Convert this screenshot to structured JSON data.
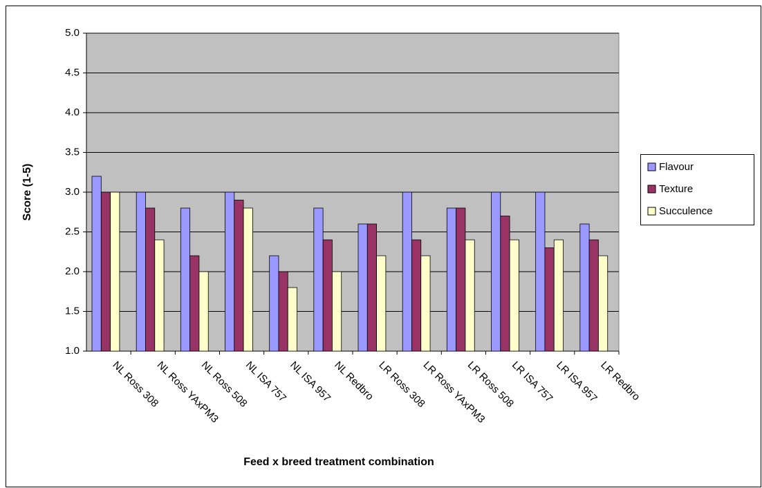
{
  "chart_data": {
    "type": "bar",
    "x_label": "Feed x breed treatment combination",
    "y_label": "Score (1-5)",
    "categories": [
      "NL Ross 308",
      "NL Ross YAxPM3",
      "NL Ross 508",
      "NL ISA 757",
      "NL ISA 957",
      "NL Redbro",
      "LR Ross 308",
      "LR Ross YAxPM3",
      "LR Ross 508",
      "LR ISA 757",
      "LR ISA 957",
      "LR Redbro"
    ],
    "series": [
      {
        "name": "Flavour",
        "color": "#9999ff",
        "values": [
          3.2,
          3.0,
          2.8,
          3.0,
          2.2,
          2.8,
          2.6,
          3.0,
          2.8,
          3.0,
          3.0,
          2.6
        ]
      },
      {
        "name": "Texture",
        "color": "#993366",
        "values": [
          3.0,
          2.8,
          2.2,
          2.9,
          2.0,
          2.4,
          2.6,
          2.4,
          2.8,
          2.7,
          2.3,
          2.4
        ]
      },
      {
        "name": "Succulence",
        "color": "#ffffcc",
        "values": [
          3.0,
          2.4,
          2.0,
          2.8,
          1.8,
          2.0,
          2.2,
          2.2,
          2.4,
          2.4,
          2.4,
          2.2
        ]
      }
    ],
    "ylim": [
      1,
      5
    ],
    "yticks": [
      {
        "value": 1,
        "label": "1.0"
      },
      1.5,
      {
        "value": 2,
        "label": "2.0"
      },
      2.5,
      {
        "value": 3,
        "label": "3.0"
      },
      3.5,
      {
        "value": 4,
        "label": "4.0"
      },
      4.5,
      {
        "value": 5,
        "label": "5.0"
      }
    ],
    "grid": true,
    "legend": "right"
  }
}
